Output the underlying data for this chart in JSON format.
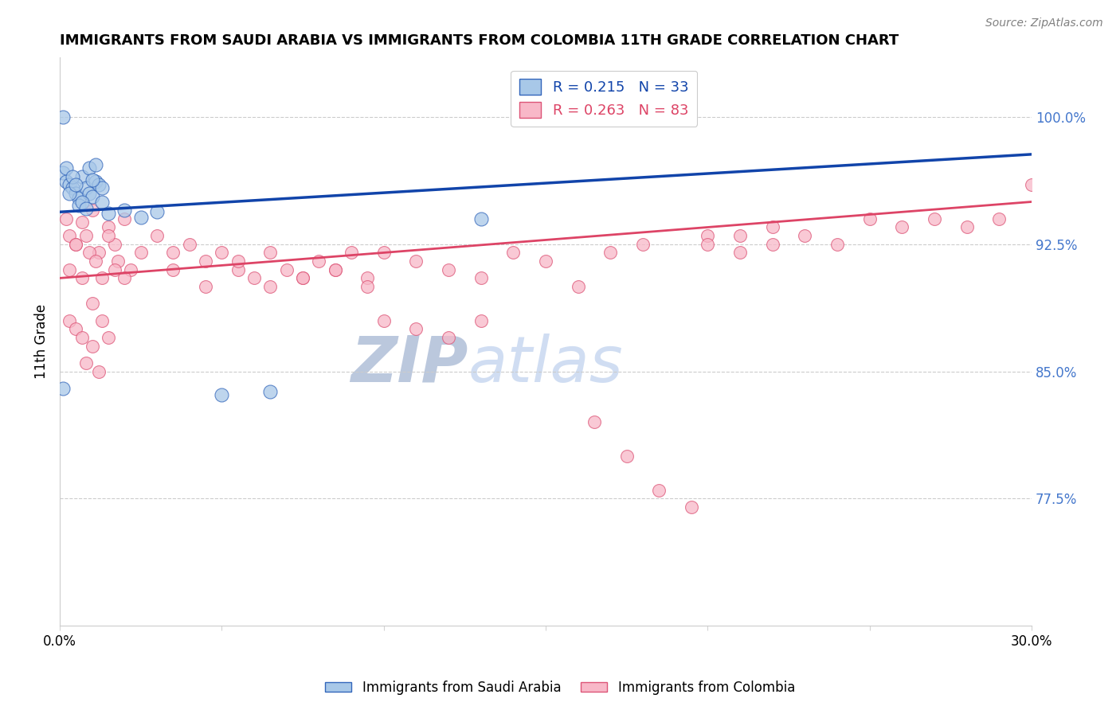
{
  "title": "IMMIGRANTS FROM SAUDI ARABIA VS IMMIGRANTS FROM COLOMBIA 11TH GRADE CORRELATION CHART",
  "source_text": "Source: ZipAtlas.com",
  "ylabel": "11th Grade",
  "xlim": [
    0.0,
    0.3
  ],
  "ylim": [
    0.7,
    1.035
  ],
  "yticks": [
    0.775,
    0.85,
    0.925,
    1.0
  ],
  "ytick_labels": [
    "77.5%",
    "85.0%",
    "92.5%",
    "100.0%"
  ],
  "xtick_vals": [
    0.0,
    0.05,
    0.1,
    0.15,
    0.2,
    0.25,
    0.3
  ],
  "xtick_labels": [
    "0.0%",
    "",
    "",
    "",
    "",
    "",
    "30.0%"
  ],
  "r_saudi": 0.215,
  "n_saudi": 33,
  "r_colombia": 0.263,
  "n_colombia": 83,
  "saudi_fill_color": "#a8c8e8",
  "saudi_edge_color": "#3366bb",
  "colombia_fill_color": "#f8b8c8",
  "colombia_edge_color": "#dd5577",
  "saudi_line_color": "#1144aa",
  "colombia_line_color": "#dd4466",
  "legend_label_saudi": "Immigrants from Saudi Arabia",
  "legend_label_colombia": "Immigrants from Colombia",
  "watermark": "ZIPatlas",
  "watermark_color": "#c8d8f0",
  "saudi_x": [
    0.001,
    0.002,
    0.003,
    0.004,
    0.005,
    0.006,
    0.007,
    0.008,
    0.009,
    0.01,
    0.011,
    0.012,
    0.013,
    0.002,
    0.003,
    0.004,
    0.005,
    0.006,
    0.007,
    0.008,
    0.009,
    0.01,
    0.011,
    0.013,
    0.015,
    0.05,
    0.065,
    0.001,
    0.001,
    0.13,
    0.02,
    0.025,
    0.03
  ],
  "saudi_y": [
    0.967,
    0.962,
    0.96,
    0.958,
    0.955,
    0.952,
    0.965,
    0.958,
    0.955,
    0.953,
    0.962,
    0.96,
    0.958,
    0.97,
    0.955,
    0.965,
    0.96,
    0.948,
    0.95,
    0.946,
    0.97,
    0.963,
    0.972,
    0.95,
    0.943,
    0.836,
    0.838,
    0.84,
    1.0,
    0.94,
    0.945,
    0.941,
    0.944
  ],
  "colombia_x": [
    0.002,
    0.003,
    0.005,
    0.007,
    0.008,
    0.01,
    0.012,
    0.015,
    0.017,
    0.018,
    0.02,
    0.022,
    0.025,
    0.003,
    0.005,
    0.007,
    0.009,
    0.011,
    0.013,
    0.015,
    0.017,
    0.02,
    0.003,
    0.005,
    0.007,
    0.01,
    0.013,
    0.015,
    0.008,
    0.01,
    0.012,
    0.03,
    0.035,
    0.04,
    0.045,
    0.05,
    0.055,
    0.06,
    0.065,
    0.07,
    0.075,
    0.08,
    0.085,
    0.09,
    0.095,
    0.035,
    0.045,
    0.055,
    0.065,
    0.075,
    0.085,
    0.095,
    0.1,
    0.11,
    0.12,
    0.13,
    0.14,
    0.15,
    0.16,
    0.17,
    0.18,
    0.2,
    0.21,
    0.22,
    0.1,
    0.11,
    0.12,
    0.13,
    0.2,
    0.21,
    0.22,
    0.23,
    0.24,
    0.25,
    0.26,
    0.27,
    0.28,
    0.29,
    0.3,
    0.165,
    0.175,
    0.185,
    0.195
  ],
  "colombia_y": [
    0.94,
    0.93,
    0.925,
    0.938,
    0.93,
    0.945,
    0.92,
    0.935,
    0.925,
    0.915,
    0.94,
    0.91,
    0.92,
    0.91,
    0.925,
    0.905,
    0.92,
    0.915,
    0.905,
    0.93,
    0.91,
    0.905,
    0.88,
    0.875,
    0.87,
    0.89,
    0.88,
    0.87,
    0.855,
    0.865,
    0.85,
    0.93,
    0.92,
    0.925,
    0.915,
    0.92,
    0.91,
    0.905,
    0.92,
    0.91,
    0.905,
    0.915,
    0.91,
    0.92,
    0.905,
    0.91,
    0.9,
    0.915,
    0.9,
    0.905,
    0.91,
    0.9,
    0.92,
    0.915,
    0.91,
    0.905,
    0.92,
    0.915,
    0.9,
    0.92,
    0.925,
    0.93,
    0.92,
    0.925,
    0.88,
    0.875,
    0.87,
    0.88,
    0.925,
    0.93,
    0.935,
    0.93,
    0.925,
    0.94,
    0.935,
    0.94,
    0.935,
    0.94,
    0.96,
    0.82,
    0.8,
    0.78,
    0.77
  ]
}
